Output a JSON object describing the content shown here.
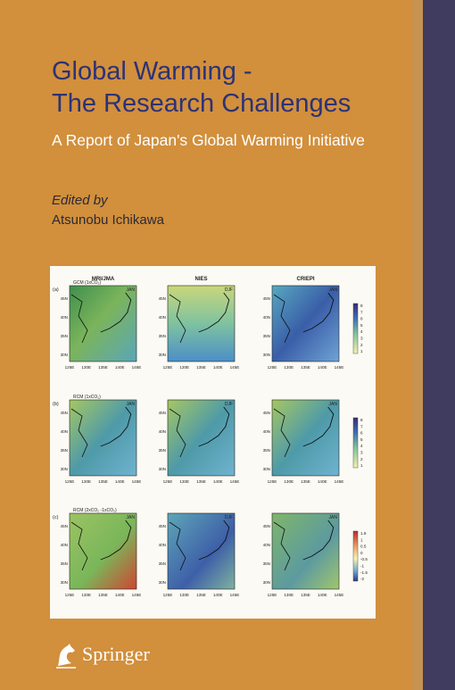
{
  "book": {
    "title_line1": "Global Warming -",
    "title_line2": "The Research Challenges",
    "subtitle": "A Report of Japan's Global Warming Initiative",
    "edited_by_label": "Edited by",
    "editor": "Atsunobu Ichikawa",
    "publisher": "Springer"
  },
  "colors": {
    "background": "#d28f3c",
    "title": "#2c3276",
    "stripe": "#3f3c5f"
  },
  "figure": {
    "columns": [
      "MRI/JMA",
      "NIES",
      "CRIEPI"
    ],
    "row_labels": [
      "(a)",
      "(b)",
      "(c)"
    ],
    "row_models": [
      "GCM (1xCO₂)",
      "RCM (1xCO₂)",
      "RCM (2xCO₂ -1xCO₂)"
    ],
    "season_labels": [
      [
        "JAN",
        "DJF",
        "JAN"
      ],
      [
        "JAN",
        "DJF",
        "JAN"
      ],
      [
        "JAN",
        "DJF",
        "JAN"
      ]
    ],
    "lat_ticks": [
      "45N",
      "40N",
      "35N",
      "30N"
    ],
    "lon_ticks": [
      "125E",
      "130E",
      "135E",
      "140E",
      "145E"
    ],
    "legend_rows": [
      [
        "8",
        "7",
        "6",
        "5",
        "4",
        "3",
        "2",
        "1"
      ],
      [
        "8",
        "7",
        "6",
        "5",
        "4",
        "3",
        "2",
        "1"
      ],
      [
        "1.5",
        "1",
        "0.5",
        "0",
        "-0.5",
        "-1",
        "-1.5",
        "-2"
      ]
    ]
  }
}
